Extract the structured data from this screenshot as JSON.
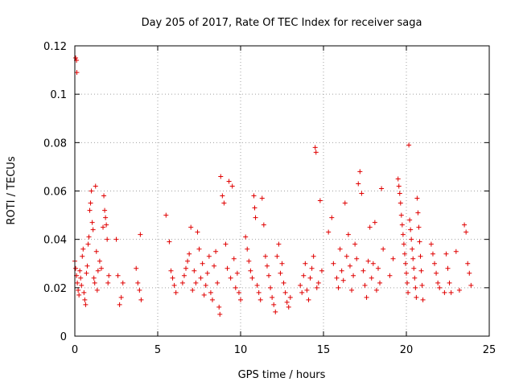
{
  "chart_data": {
    "type": "scatter",
    "title": "Day 205 of 2017, Rate Of TEC Index for receiver saga",
    "xlabel": "GPS time / hours",
    "ylabel": "ROTI / TECUs",
    "xlim": [
      0,
      25
    ],
    "ylim": [
      0,
      0.12
    ],
    "xticks": [
      0,
      5,
      10,
      15,
      20,
      25
    ],
    "xtick_labels": [
      "0",
      "5",
      "10",
      "15",
      "20",
      "25"
    ],
    "yticks": [
      0,
      0.02,
      0.04,
      0.06,
      0.08,
      0.1,
      0.12
    ],
    "ytick_labels": [
      "0",
      "0.02",
      "0.04",
      "0.06",
      "0.08",
      "0.1",
      "0.12"
    ],
    "grid": true,
    "marker": "plus",
    "marker_color": "#e00000",
    "series": [
      {
        "name": "ROTI",
        "points": [
          [
            0.05,
            0.115
          ],
          [
            0.1,
            0.114
          ],
          [
            0.12,
            0.109
          ],
          [
            0.0,
            0.031
          ],
          [
            0.05,
            0.028
          ],
          [
            0.1,
            0.025
          ],
          [
            0.15,
            0.022
          ],
          [
            0.2,
            0.019
          ],
          [
            0.25,
            0.017
          ],
          [
            0.3,
            0.027
          ],
          [
            0.35,
            0.024
          ],
          [
            0.4,
            0.021
          ],
          [
            0.45,
            0.033
          ],
          [
            0.5,
            0.036
          ],
          [
            0.55,
            0.018
          ],
          [
            0.6,
            0.015
          ],
          [
            0.65,
            0.013
          ],
          [
            0.7,
            0.026
          ],
          [
            0.75,
            0.029
          ],
          [
            0.8,
            0.038
          ],
          [
            0.85,
            0.041
          ],
          [
            0.9,
            0.052
          ],
          [
            0.95,
            0.055
          ],
          [
            1.0,
            0.06
          ],
          [
            1.05,
            0.047
          ],
          [
            1.1,
            0.044
          ],
          [
            1.15,
            0.024
          ],
          [
            1.2,
            0.022
          ],
          [
            1.25,
            0.062
          ],
          [
            1.3,
            0.035
          ],
          [
            1.35,
            0.019
          ],
          [
            1.4,
            0.027
          ],
          [
            1.5,
            0.031
          ],
          [
            1.6,
            0.028
          ],
          [
            1.7,
            0.045
          ],
          [
            1.75,
            0.058
          ],
          [
            1.8,
            0.052
          ],
          [
            1.85,
            0.049
          ],
          [
            1.9,
            0.046
          ],
          [
            1.95,
            0.04
          ],
          [
            2.0,
            0.022
          ],
          [
            2.05,
            0.025
          ],
          [
            2.5,
            0.04
          ],
          [
            2.6,
            0.025
          ],
          [
            2.7,
            0.013
          ],
          [
            2.8,
            0.016
          ],
          [
            2.9,
            0.022
          ],
          [
            3.7,
            0.028
          ],
          [
            3.8,
            0.022
          ],
          [
            3.9,
            0.019
          ],
          [
            3.95,
            0.042
          ],
          [
            4.0,
            0.015
          ],
          [
            5.5,
            0.05
          ],
          [
            5.7,
            0.039
          ],
          [
            5.8,
            0.027
          ],
          [
            5.9,
            0.024
          ],
          [
            6.0,
            0.021
          ],
          [
            6.1,
            0.018
          ],
          [
            6.5,
            0.022
          ],
          [
            6.6,
            0.025
          ],
          [
            6.7,
            0.028
          ],
          [
            6.8,
            0.031
          ],
          [
            6.9,
            0.034
          ],
          [
            7.0,
            0.045
          ],
          [
            7.1,
            0.019
          ],
          [
            7.2,
            0.027
          ],
          [
            7.3,
            0.022
          ],
          [
            7.4,
            0.043
          ],
          [
            7.5,
            0.036
          ],
          [
            7.6,
            0.024
          ],
          [
            7.7,
            0.03
          ],
          [
            7.8,
            0.017
          ],
          [
            7.9,
            0.021
          ],
          [
            8.0,
            0.026
          ],
          [
            8.1,
            0.033
          ],
          [
            8.2,
            0.018
          ],
          [
            8.3,
            0.015
          ],
          [
            8.4,
            0.029
          ],
          [
            8.5,
            0.035
          ],
          [
            8.6,
            0.022
          ],
          [
            8.7,
            0.012
          ],
          [
            8.75,
            0.009
          ],
          [
            8.8,
            0.066
          ],
          [
            8.9,
            0.058
          ],
          [
            9.0,
            0.055
          ],
          [
            9.1,
            0.038
          ],
          [
            9.2,
            0.028
          ],
          [
            9.3,
            0.064
          ],
          [
            9.4,
            0.024
          ],
          [
            9.5,
            0.062
          ],
          [
            9.6,
            0.032
          ],
          [
            9.7,
            0.02
          ],
          [
            9.8,
            0.026
          ],
          [
            9.9,
            0.018
          ],
          [
            10.0,
            0.015
          ],
          [
            10.3,
            0.041
          ],
          [
            10.4,
            0.036
          ],
          [
            10.5,
            0.031
          ],
          [
            10.6,
            0.027
          ],
          [
            10.7,
            0.024
          ],
          [
            10.8,
            0.058
          ],
          [
            10.85,
            0.053
          ],
          [
            10.9,
            0.049
          ],
          [
            11.0,
            0.021
          ],
          [
            11.1,
            0.018
          ],
          [
            11.2,
            0.015
          ],
          [
            11.3,
            0.057
          ],
          [
            11.4,
            0.046
          ],
          [
            11.5,
            0.033
          ],
          [
            11.6,
            0.029
          ],
          [
            11.7,
            0.025
          ],
          [
            11.8,
            0.02
          ],
          [
            11.9,
            0.016
          ],
          [
            12.0,
            0.013
          ],
          [
            12.1,
            0.01
          ],
          [
            12.2,
            0.033
          ],
          [
            12.3,
            0.038
          ],
          [
            12.4,
            0.026
          ],
          [
            12.5,
            0.03
          ],
          [
            12.6,
            0.022
          ],
          [
            12.7,
            0.018
          ],
          [
            12.8,
            0.014
          ],
          [
            12.9,
            0.012
          ],
          [
            13.0,
            0.016
          ],
          [
            13.6,
            0.021
          ],
          [
            13.7,
            0.018
          ],
          [
            13.8,
            0.025
          ],
          [
            13.9,
            0.03
          ],
          [
            14.0,
            0.019
          ],
          [
            14.1,
            0.015
          ],
          [
            14.2,
            0.024
          ],
          [
            14.3,
            0.028
          ],
          [
            14.4,
            0.033
          ],
          [
            14.5,
            0.078
          ],
          [
            14.55,
            0.076
          ],
          [
            14.6,
            0.02
          ],
          [
            14.7,
            0.022
          ],
          [
            14.8,
            0.056
          ],
          [
            14.9,
            0.027
          ],
          [
            15.3,
            0.043
          ],
          [
            15.5,
            0.049
          ],
          [
            15.6,
            0.03
          ],
          [
            15.8,
            0.024
          ],
          [
            15.9,
            0.02
          ],
          [
            16.0,
            0.036
          ],
          [
            16.1,
            0.027
          ],
          [
            16.2,
            0.023
          ],
          [
            16.3,
            0.055
          ],
          [
            16.4,
            0.033
          ],
          [
            16.5,
            0.042
          ],
          [
            16.6,
            0.029
          ],
          [
            16.7,
            0.019
          ],
          [
            16.8,
            0.025
          ],
          [
            16.9,
            0.038
          ],
          [
            17.0,
            0.032
          ],
          [
            17.1,
            0.063
          ],
          [
            17.2,
            0.068
          ],
          [
            17.3,
            0.059
          ],
          [
            17.4,
            0.027
          ],
          [
            17.5,
            0.021
          ],
          [
            17.6,
            0.016
          ],
          [
            17.7,
            0.031
          ],
          [
            17.8,
            0.045
          ],
          [
            17.9,
            0.024
          ],
          [
            18.0,
            0.03
          ],
          [
            18.1,
            0.047
          ],
          [
            18.2,
            0.019
          ],
          [
            18.3,
            0.028
          ],
          [
            18.4,
            0.022
          ],
          [
            18.5,
            0.061
          ],
          [
            18.6,
            0.036
          ],
          [
            19.0,
            0.025
          ],
          [
            19.2,
            0.032
          ],
          [
            19.5,
            0.065
          ],
          [
            19.55,
            0.062
          ],
          [
            19.6,
            0.059
          ],
          [
            19.65,
            0.055
          ],
          [
            19.7,
            0.05
          ],
          [
            19.75,
            0.046
          ],
          [
            19.8,
            0.042
          ],
          [
            19.85,
            0.038
          ],
          [
            19.9,
            0.034
          ],
          [
            19.95,
            0.03
          ],
          [
            20.0,
            0.026
          ],
          [
            20.05,
            0.022
          ],
          [
            20.1,
            0.018
          ],
          [
            20.15,
            0.079
          ],
          [
            20.2,
            0.048
          ],
          [
            20.25,
            0.044
          ],
          [
            20.3,
            0.04
          ],
          [
            20.35,
            0.036
          ],
          [
            20.4,
            0.032
          ],
          [
            20.45,
            0.028
          ],
          [
            20.5,
            0.024
          ],
          [
            20.55,
            0.02
          ],
          [
            20.6,
            0.016
          ],
          [
            20.65,
            0.057
          ],
          [
            20.7,
            0.051
          ],
          [
            20.75,
            0.045
          ],
          [
            20.8,
            0.039
          ],
          [
            20.85,
            0.033
          ],
          [
            20.9,
            0.027
          ],
          [
            20.95,
            0.021
          ],
          [
            21.0,
            0.015
          ],
          [
            21.5,
            0.038
          ],
          [
            21.6,
            0.034
          ],
          [
            21.7,
            0.03
          ],
          [
            21.8,
            0.026
          ],
          [
            21.9,
            0.022
          ],
          [
            22.0,
            0.02
          ],
          [
            22.3,
            0.018
          ],
          [
            22.4,
            0.034
          ],
          [
            22.5,
            0.028
          ],
          [
            22.6,
            0.022
          ],
          [
            22.7,
            0.018
          ],
          [
            23.0,
            0.035
          ],
          [
            23.2,
            0.019
          ],
          [
            23.5,
            0.046
          ],
          [
            23.6,
            0.043
          ],
          [
            23.7,
            0.03
          ],
          [
            23.8,
            0.026
          ],
          [
            23.9,
            0.021
          ]
        ]
      }
    ]
  }
}
